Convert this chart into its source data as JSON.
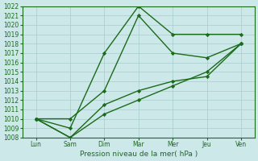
{
  "x_labels": [
    "Lun",
    "Sam",
    "Dim",
    "Mar",
    "Mer",
    "Jeu",
    "Ven"
  ],
  "x_positions": [
    0,
    1,
    2,
    3,
    4,
    5,
    6
  ],
  "line1": [
    1010.0,
    1009.0,
    1017.0,
    1022.0,
    1019.0,
    1019.0,
    1019.0
  ],
  "line2": [
    1010.0,
    1010.0,
    1013.0,
    1021.0,
    1017.0,
    1016.5,
    1018.0
  ],
  "line3": [
    1010.0,
    1008.0,
    1011.5,
    1013.0,
    1014.0,
    1014.5,
    1018.0
  ],
  "line4": [
    1010.0,
    1008.0,
    1010.5,
    1012.0,
    1013.5,
    1015.0,
    1018.0
  ],
  "ylim": [
    1008,
    1022
  ],
  "yticks": [
    1008,
    1009,
    1010,
    1011,
    1012,
    1013,
    1014,
    1015,
    1016,
    1017,
    1018,
    1019,
    1020,
    1021,
    1022
  ],
  "line_color": "#1a6b1a",
  "bg_color": "#cce8e8",
  "grid_color": "#a8cccc",
  "xlabel": "Pression niveau de la mer( hPa )",
  "xlabel_color": "#1a6b1a",
  "marker": "D",
  "marker_size": 2.2,
  "line_width": 1.0
}
